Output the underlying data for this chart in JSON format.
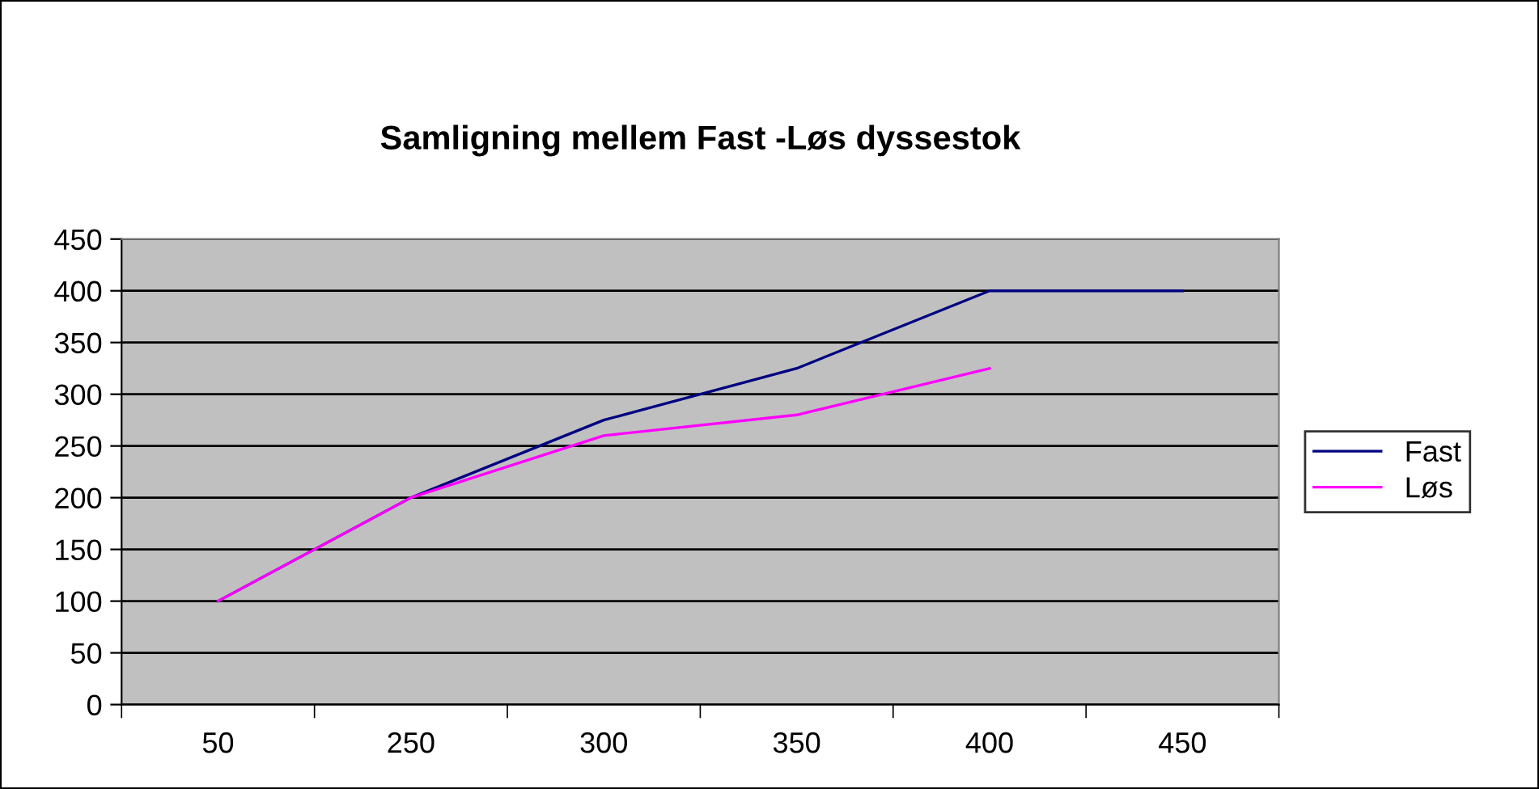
{
  "chart_data": {
    "type": "line",
    "title": "Samligning mellem Fast -Løs dyssestok",
    "categories": [
      "50",
      "250",
      "300",
      "350",
      "400",
      "450"
    ],
    "series": [
      {
        "name": "Fast",
        "color": "#000080",
        "values": [
          100,
          200,
          275,
          325,
          400,
          400
        ]
      },
      {
        "name": "Løs",
        "color": "#ff00ff",
        "values": [
          100,
          200,
          260,
          280,
          325,
          null
        ]
      }
    ],
    "ylim": [
      0,
      450
    ],
    "yticks": [
      0,
      50,
      100,
      150,
      200,
      250,
      300,
      350,
      400,
      450
    ],
    "grid": "y",
    "legend": "right",
    "marker": "none",
    "line_style": "solid"
  }
}
